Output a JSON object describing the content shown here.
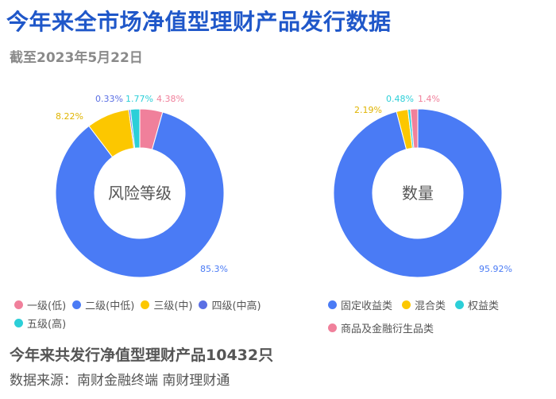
{
  "title": "今年来全市场净值型理财产品发行数据",
  "subtitle": "截至2023年5月22日",
  "footer": {
    "total": "今年来共发行净值型理财产品10432只",
    "source": "数据来源：南财金融终端 南财理财通"
  },
  "chart_data": [
    {
      "type": "pie",
      "donut": true,
      "center_label": "风险等级",
      "categories": [
        "一级(低)",
        "二级(中低)",
        "三级(中)",
        "四级(中高)",
        "五级(高)"
      ],
      "values": [
        4.38,
        85.3,
        8.22,
        0.33,
        1.77
      ],
      "labels": [
        "4.38%",
        "85.3%",
        "8.22%",
        "0.33%",
        "1.77%"
      ],
      "colors": [
        "#f0809b",
        "#4a7bf5",
        "#fcc700",
        "#5a6fe4",
        "#2ccfd8"
      ],
      "legend_position": "bottom"
    },
    {
      "type": "pie",
      "donut": true,
      "center_label": "数量",
      "categories": [
        "固定收益类",
        "混合类",
        "权益类",
        "商品及金融衍生品类"
      ],
      "values": [
        95.92,
        2.19,
        0.48,
        1.4
      ],
      "labels": [
        "95.92%",
        "2.19%",
        "0.48%",
        "1.4%"
      ],
      "colors": [
        "#4a7bf5",
        "#fcc700",
        "#2ccfd8",
        "#f0809b"
      ],
      "legend_position": "bottom"
    }
  ]
}
